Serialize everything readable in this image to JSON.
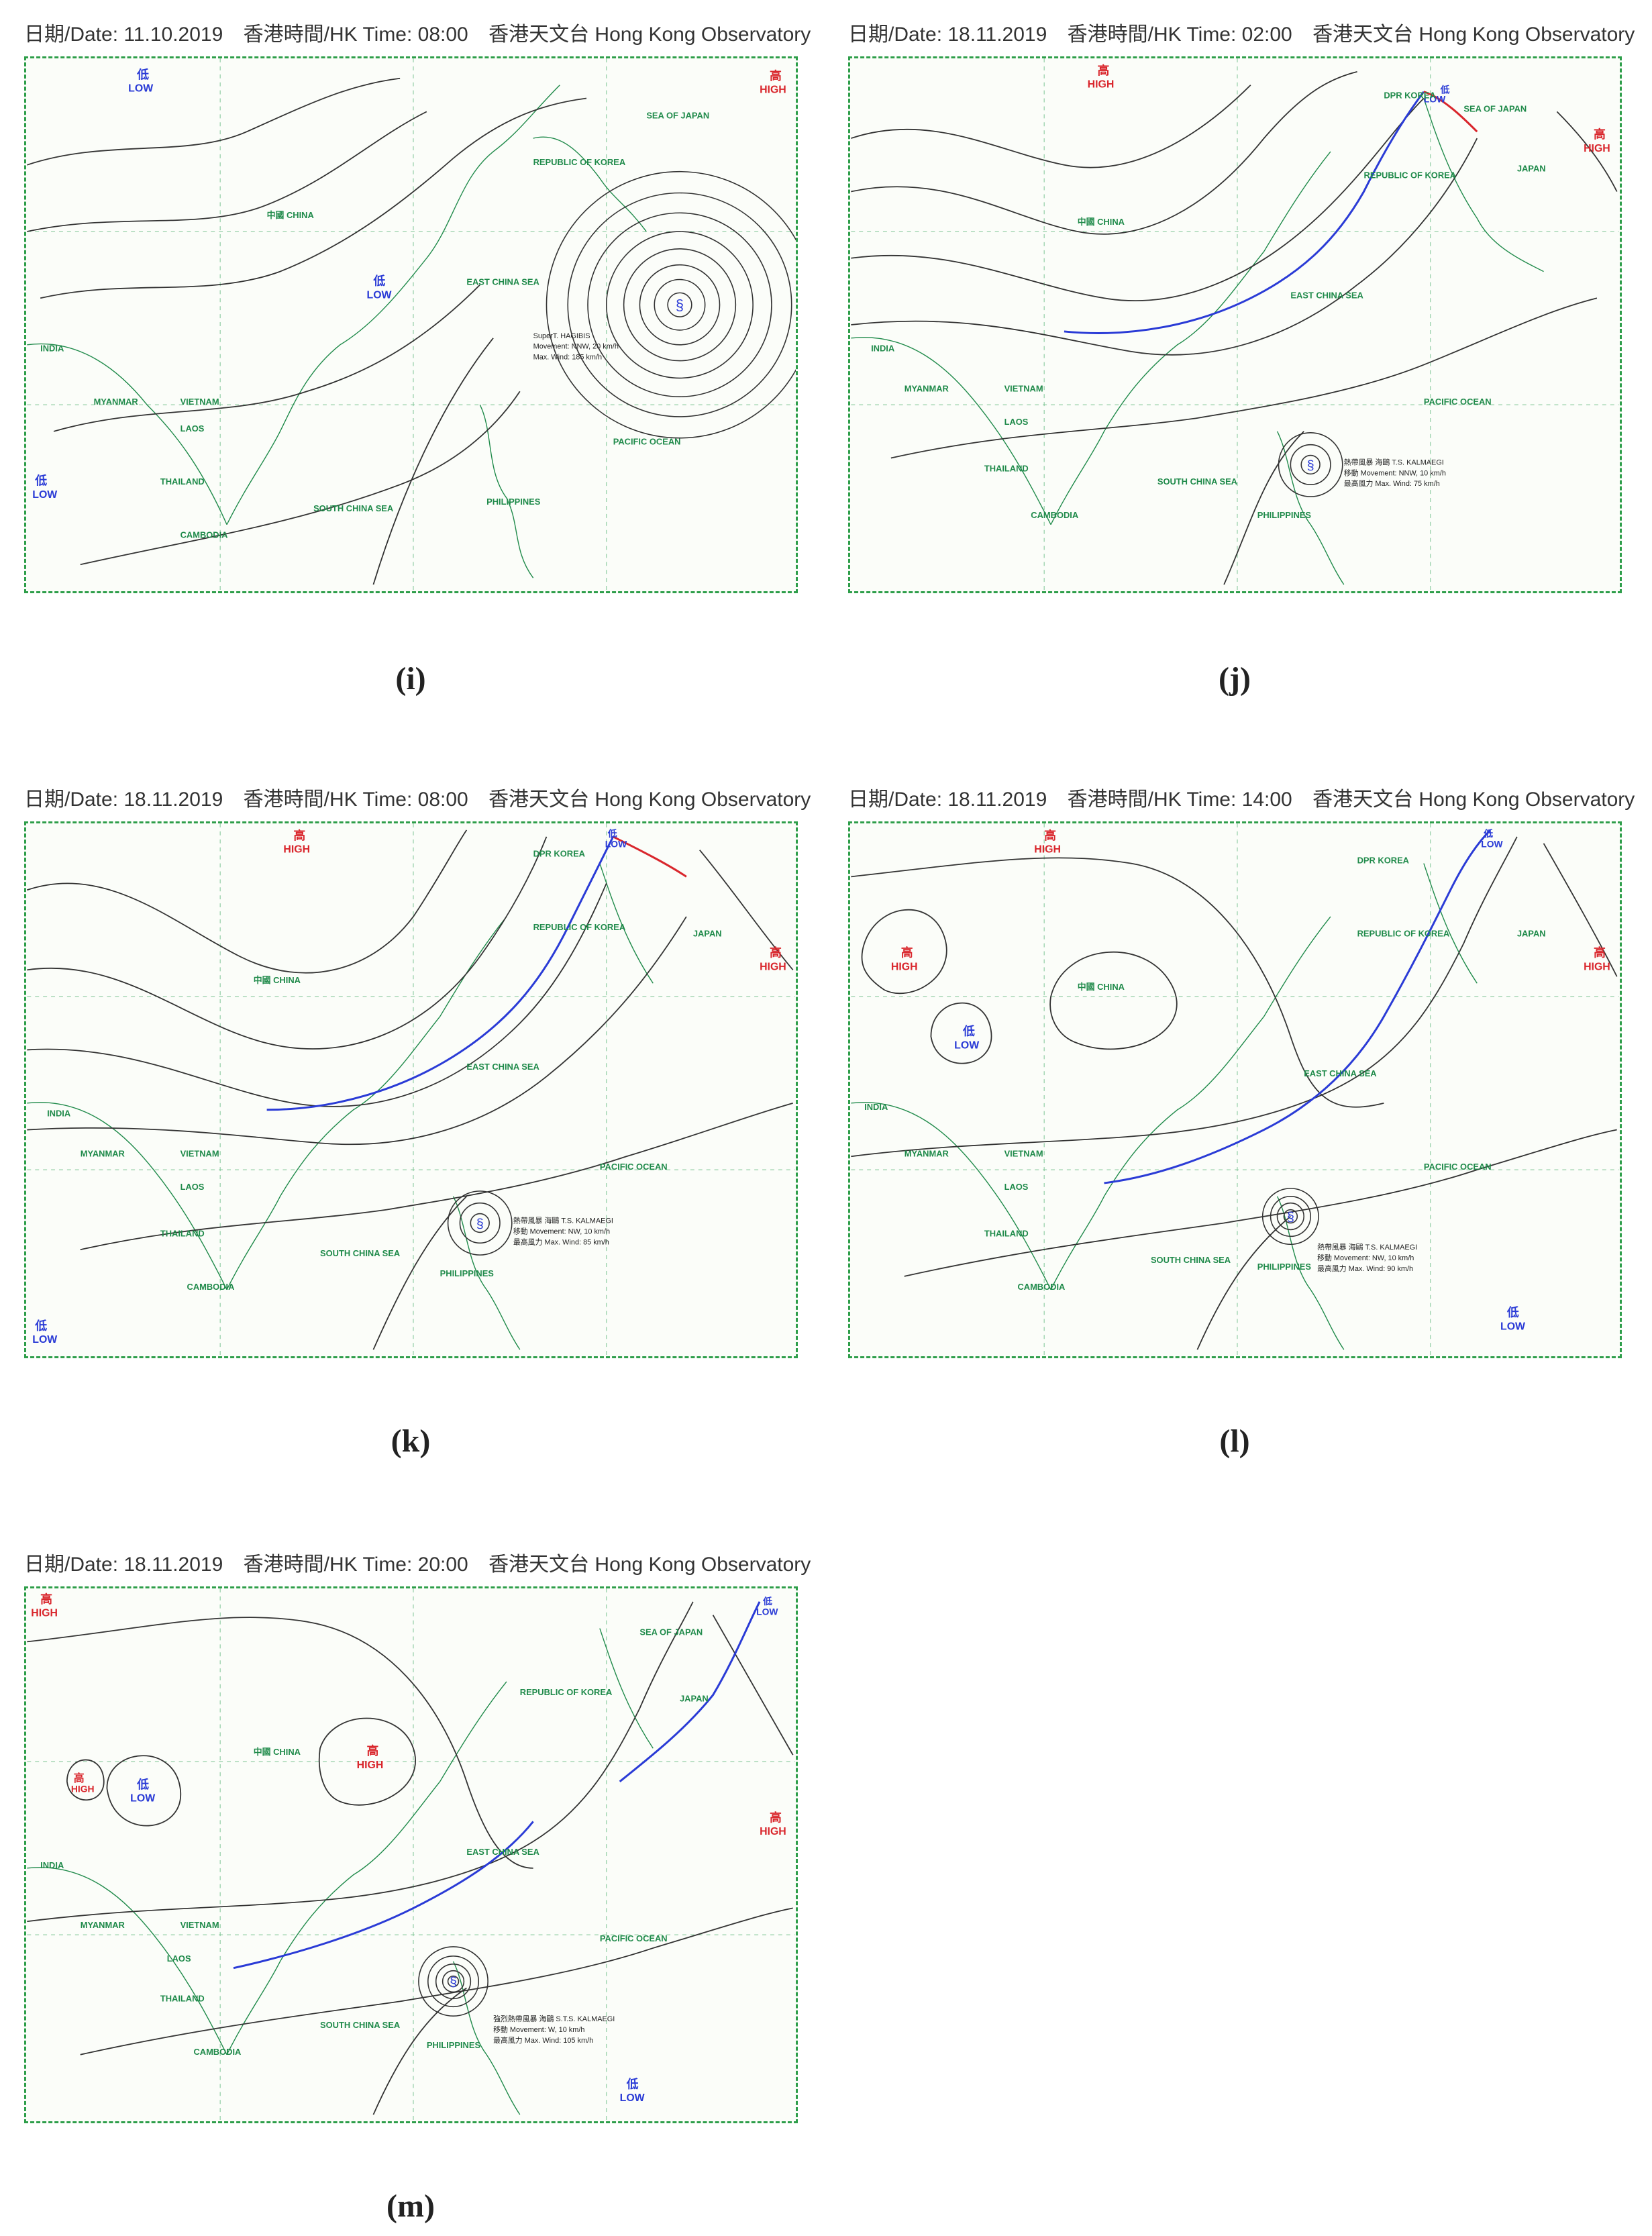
{
  "panels": [
    {
      "caption": "(i)",
      "date": "日期/Date: 11.10.2019",
      "time": "香港時間/HK Time: 08:00",
      "observatory": "香港天文台 Hong Kong Observatory",
      "pressure_labels": [
        {
          "zh": "低",
          "en": "LOW",
          "kind": "low"
        },
        {
          "zh": "高",
          "en": "HIGH",
          "kind": "high"
        },
        {
          "zh": "低",
          "en": "LOW",
          "kind": "low"
        },
        {
          "zh": "低",
          "en": "LOW",
          "kind": "low"
        }
      ],
      "places": [
        "中國 CHINA",
        "INDIA",
        "MYANMAR",
        "VIETNAM",
        "LAOS",
        "THAILAND",
        "CAMBODIA",
        "REPUBLIC OF KOREA",
        "SEA OF JAPAN",
        "EAST CHINA SEA",
        "SOUTH CHINA SEA",
        "PHILIPPINES",
        "PACIFIC OCEAN"
      ],
      "typhoon_text": [
        "SuperT. HAGIBIS",
        "Movement: NNW, 20 km/h",
        "Max. Wind: 185 km/h"
      ],
      "fronts": []
    },
    {
      "caption": "(j)",
      "date": "日期/Date: 18.11.2019",
      "time": "香港時間/HK Time: 02:00",
      "observatory": "香港天文台 Hong Kong Observatory",
      "pressure_labels": [
        {
          "zh": "高",
          "en": "HIGH",
          "kind": "high"
        },
        {
          "zh": "低",
          "en": "LOW",
          "kind": "low"
        },
        {
          "zh": "高",
          "en": "HIGH",
          "kind": "high"
        }
      ],
      "places": [
        "中國 CHINA",
        "INDIA",
        "MYANMAR",
        "VIETNAM",
        "LAOS",
        "THAILAND",
        "CAMBODIA",
        "DPR KOREA",
        "REPUBLIC OF KOREA",
        "SEA OF JAPAN",
        "JAPAN",
        "EAST CHINA SEA",
        "SOUTH CHINA SEA",
        "PHILIPPINES",
        "PACIFIC OCEAN"
      ],
      "typhoon_text": [
        "熱帶風暴 海鷗 T.S. KALMAEGI",
        "移動 Movement: NNW, 10 km/h",
        "最高風力 Max. Wind: 75 km/h"
      ],
      "fronts": [
        "cold",
        "warm"
      ]
    },
    {
      "caption": "(k)",
      "date": "日期/Date: 18.11.2019",
      "time": "香港時間/HK Time: 08:00",
      "observatory": "香港天文台 Hong Kong Observatory",
      "pressure_labels": [
        {
          "zh": "高",
          "en": "HIGH",
          "kind": "high"
        },
        {
          "zh": "低",
          "en": "LOW",
          "kind": "low"
        },
        {
          "zh": "高",
          "en": "HIGH",
          "kind": "high"
        },
        {
          "zh": "低",
          "en": "LOW",
          "kind": "low"
        }
      ],
      "places": [
        "中國 CHINA",
        "INDIA",
        "MYANMAR",
        "VIETNAM",
        "LAOS",
        "THAILAND",
        "CAMBODIA",
        "DPR KOREA",
        "REPUBLIC OF KOREA",
        "JAPAN",
        "EAST CHINA SEA",
        "SOUTH CHINA SEA",
        "PHILIPPINES",
        "PACIFIC OCEAN"
      ],
      "typhoon_text": [
        "熱帶風暴 海鷗 T.S. KALMAEGI",
        "移動 Movement: NW, 10 km/h",
        "最高風力 Max. Wind: 85 km/h"
      ],
      "fronts": [
        "cold",
        "warm"
      ]
    },
    {
      "caption": "(l)",
      "date": "日期/Date: 18.11.2019",
      "time": "香港時間/HK Time: 14:00",
      "observatory": "香港天文台 Hong Kong Observatory",
      "pressure_labels": [
        {
          "zh": "高",
          "en": "HIGH",
          "kind": "high"
        },
        {
          "zh": "低",
          "en": "LOW",
          "kind": "low"
        },
        {
          "zh": "高",
          "en": "HIGH",
          "kind": "high"
        },
        {
          "zh": "低",
          "en": "LOW",
          "kind": "low"
        },
        {
          "zh": "高",
          "en": "HIGH",
          "kind": "high"
        },
        {
          "zh": "低",
          "en": "LOW",
          "kind": "low"
        }
      ],
      "places": [
        "中國 CHINA",
        "INDIA",
        "MYANMAR",
        "VIETNAM",
        "LAOS",
        "THAILAND",
        "CAMBODIA",
        "DPR KOREA",
        "REPUBLIC OF KOREA",
        "JAPAN",
        "EAST CHINA SEA",
        "SOUTH CHINA SEA",
        "PHILIPPINES",
        "PACIFIC OCEAN"
      ],
      "typhoon_text": [
        "熱帶風暴 海鷗 T.S. KALMAEGI",
        "移動 Movement: NW, 10 km/h",
        "最高風力 Max. Wind: 90 km/h"
      ],
      "fronts": [
        "cold"
      ]
    },
    {
      "caption": "(m)",
      "date": "日期/Date: 18.11.2019",
      "time": "香港時間/HK Time: 20:00",
      "observatory": "香港天文台 Hong Kong Observatory",
      "pressure_labels": [
        {
          "zh": "高",
          "en": "HIGH",
          "kind": "high"
        },
        {
          "zh": "低",
          "en": "LOW",
          "kind": "low"
        },
        {
          "zh": "高",
          "en": "HIGH",
          "kind": "high"
        },
        {
          "zh": "低",
          "en": "LOW",
          "kind": "low"
        },
        {
          "zh": "高",
          "en": "HIGH",
          "kind": "high"
        },
        {
          "zh": "高",
          "en": "HIGH",
          "kind": "high"
        },
        {
          "zh": "低",
          "en": "LOW",
          "kind": "low"
        }
      ],
      "places": [
        "中國 CHINA",
        "INDIA",
        "MYANMAR",
        "VIETNAM",
        "LAOS",
        "THAILAND",
        "CAMBODIA",
        "REPUBLIC OF KOREA",
        "SEA OF JAPAN",
        "JAPAN",
        "EAST CHINA SEA",
        "SOUTH CHINA SEA",
        "PHILIPPINES",
        "PACIFIC OCEAN"
      ],
      "typhoon_text": [
        "強烈熱帶風暴 海鷗 S.T.S. KALMAEGI",
        "移動 Movement: W, 10 km/h",
        "最高風力 Max. Wind: 105 km/h"
      ],
      "fronts": [
        "cold",
        "cold"
      ]
    }
  ],
  "colors": {
    "high": "#d9262c",
    "low": "#2a3bd6",
    "coast": "#1f8a4a",
    "isobar": "#333333",
    "grid": "#2e9e4a"
  }
}
